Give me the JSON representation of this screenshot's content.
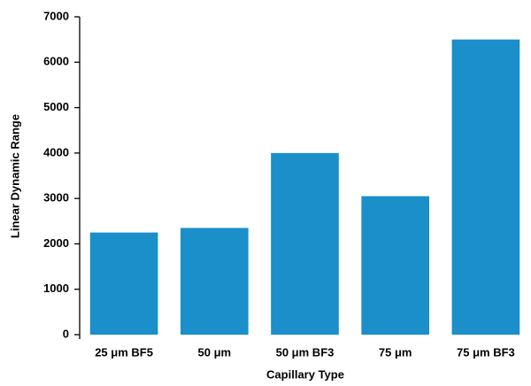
{
  "chart_data": {
    "type": "bar",
    "x_label": "Capillary Type",
    "y_label": "Linear Dynamic Range",
    "categories": [
      "25 μm BF5",
      "50 μm",
      "50 μm BF3",
      "75 μm",
      "75 μm BF3"
    ],
    "values": [
      2250,
      2350,
      4000,
      3050,
      6500
    ],
    "color": "#1a8fc9",
    "ylim": [
      0,
      7000
    ],
    "yticks": [
      0,
      1000,
      2000,
      3000,
      4000,
      5000,
      6000,
      7000
    ],
    "grid": false
  }
}
